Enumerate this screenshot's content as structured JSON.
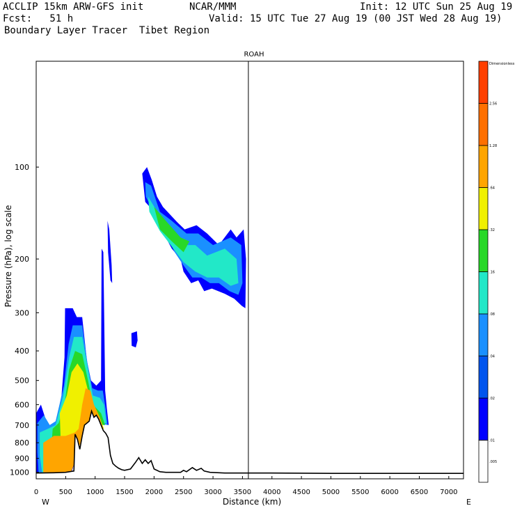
{
  "header": {
    "line1_left": "ACCLIP 15km ARW-GFS init",
    "line1_mid": "NCAR/MMM",
    "line1_right": "Init: 12 UTC Sun 25 Aug 19",
    "line2_left": "Fcst:   51 h",
    "line2_right": "Valid: 15 UTC Tue 27 Aug 19 (00 JST Wed 28 Aug 19)",
    "line3": "Boundary Layer Tracer  Tibet Region"
  },
  "chart_data": {
    "type": "heatmap",
    "title": "ROAH",
    "xlabel": "Distance (km)",
    "ylabel": "Pressure (hPa), log scale",
    "xlim": [
      0,
      7250
    ],
    "ylim_hPa": [
      1050,
      45
    ],
    "x_ticks": [
      0,
      500,
      1000,
      1500,
      2000,
      2500,
      3000,
      3500,
      4000,
      4500,
      5000,
      5500,
      6000,
      6500,
      7000
    ],
    "x_tick_labels": [
      "0",
      "500",
      "1000",
      "1500",
      "2000",
      "2500",
      "3000",
      "3500",
      "4000",
      "4500",
      "5000",
      "5500",
      "6000",
      "6500",
      "7000"
    ],
    "y_ticks": [
      100,
      200,
      300,
      400,
      500,
      600,
      700,
      800,
      900,
      1000
    ],
    "y_tick_labels": [
      "100",
      "200",
      "300",
      "400",
      "500",
      "600",
      "700",
      "800",
      "900",
      "1000"
    ],
    "x_end_left": "W",
    "x_end_right": "E",
    "vertical_marker_km": 3600,
    "colorbar": {
      "levels": [
        ".005",
        ".01",
        ".02",
        ".04",
        ".08",
        ".16",
        ".32",
        ".64",
        "1.28",
        "2.56",
        "Dimensionless"
      ],
      "colors": [
        "#ffffff",
        "#0000ff",
        "#0055ee",
        "#1a90ff",
        "#22e8c8",
        "#28d828",
        "#f0f000",
        "#ffa500",
        "#ff7000",
        "#ff4000"
      ]
    },
    "terrain": [
      [
        0,
        1005
      ],
      [
        300,
        1003
      ],
      [
        500,
        1000
      ],
      [
        640,
        990
      ],
      [
        660,
        750
      ],
      [
        700,
        780
      ],
      [
        740,
        840
      ],
      [
        780,
        760
      ],
      [
        820,
        700
      ],
      [
        860,
        690
      ],
      [
        900,
        680
      ],
      [
        940,
        630
      ],
      [
        980,
        660
      ],
      [
        1020,
        650
      ],
      [
        1060,
        670
      ],
      [
        1100,
        700
      ],
      [
        1140,
        730
      ],
      [
        1180,
        745
      ],
      [
        1220,
        770
      ],
      [
        1260,
        880
      ],
      [
        1300,
        935
      ],
      [
        1350,
        955
      ],
      [
        1400,
        970
      ],
      [
        1450,
        980
      ],
      [
        1500,
        985
      ],
      [
        1600,
        975
      ],
      [
        1680,
        930
      ],
      [
        1740,
        895
      ],
      [
        1800,
        935
      ],
      [
        1850,
        910
      ],
      [
        1900,
        935
      ],
      [
        1950,
        915
      ],
      [
        2000,
        975
      ],
      [
        2100,
        995
      ],
      [
        2200,
        1000
      ],
      [
        2450,
        1000
      ],
      [
        2500,
        985
      ],
      [
        2550,
        995
      ],
      [
        2650,
        965
      ],
      [
        2720,
        985
      ],
      [
        2800,
        970
      ],
      [
        2850,
        990
      ],
      [
        2950,
        1000
      ],
      [
        3200,
        1005
      ],
      [
        4000,
        1005
      ],
      [
        5000,
        1008
      ],
      [
        7250,
        1008
      ]
    ],
    "tracer_regions": [
      {
        "level": 1,
        "points": [
          [
            0,
            640
          ],
          [
            80,
            600
          ],
          [
            150,
            660
          ],
          [
            230,
            720
          ],
          [
            330,
            700
          ],
          [
            430,
            560
          ],
          [
            480,
            420
          ],
          [
            490,
            290
          ],
          [
            620,
            290
          ],
          [
            690,
            310
          ],
          [
            780,
            310
          ],
          [
            860,
            430
          ],
          [
            930,
            500
          ],
          [
            1020,
            520
          ],
          [
            1100,
            500
          ],
          [
            1110,
            185
          ],
          [
            1140,
            190
          ],
          [
            1170,
            540
          ],
          [
            1200,
            620
          ],
          [
            1230,
            700
          ],
          [
            900,
            680
          ],
          [
            700,
            790
          ],
          [
            660,
            920
          ],
          [
            600,
            1000
          ],
          [
            300,
            1000
          ],
          [
            0,
            1000
          ]
        ]
      },
      {
        "level": 1,
        "points": [
          [
            1210,
            150
          ],
          [
            1240,
            160
          ],
          [
            1280,
            210
          ],
          [
            1290,
            240
          ],
          [
            1260,
            235
          ],
          [
            1220,
            190
          ]
        ]
      },
      {
        "level": 1,
        "points": [
          [
            1615,
            350
          ],
          [
            1710,
            345
          ],
          [
            1720,
            370
          ],
          [
            1690,
            390
          ],
          [
            1620,
            385
          ]
        ]
      },
      {
        "level": 1,
        "points": [
          [
            1800,
            105
          ],
          [
            1880,
            100
          ],
          [
            1960,
            110
          ],
          [
            2050,
            125
          ],
          [
            2150,
            135
          ],
          [
            2300,
            145
          ],
          [
            2400,
            152
          ],
          [
            2520,
            160
          ],
          [
            2720,
            155
          ],
          [
            2900,
            165
          ],
          [
            3100,
            180
          ],
          [
            3300,
            160
          ],
          [
            3400,
            170
          ],
          [
            3520,
            160
          ],
          [
            3560,
            200
          ],
          [
            3550,
            290
          ],
          [
            3490,
            285
          ],
          [
            3360,
            270
          ],
          [
            3200,
            260
          ],
          [
            2980,
            250
          ],
          [
            2850,
            255
          ],
          [
            2750,
            235
          ],
          [
            2630,
            240
          ],
          [
            2500,
            220
          ],
          [
            2450,
            200
          ],
          [
            2300,
            185
          ],
          [
            2200,
            170
          ],
          [
            2000,
            140
          ],
          [
            1850,
            130
          ]
        ]
      },
      {
        "level": 3,
        "points": [
          [
            20,
            690
          ],
          [
            130,
            650
          ],
          [
            230,
            700
          ],
          [
            330,
            680
          ],
          [
            470,
            520
          ],
          [
            550,
            380
          ],
          [
            620,
            330
          ],
          [
            780,
            330
          ],
          [
            870,
            440
          ],
          [
            950,
            530
          ],
          [
            1050,
            540
          ],
          [
            1130,
            540
          ],
          [
            1180,
            620
          ],
          [
            1210,
            700
          ],
          [
            900,
            680
          ],
          [
            700,
            800
          ],
          [
            640,
            930
          ],
          [
            560,
            1000
          ],
          [
            40,
            1000
          ],
          [
            20,
            860
          ]
        ]
      },
      {
        "level": 3,
        "points": [
          [
            1850,
            112
          ],
          [
            1950,
            115
          ],
          [
            2100,
            140
          ],
          [
            2300,
            150
          ],
          [
            2550,
            165
          ],
          [
            2750,
            165
          ],
          [
            3000,
            180
          ],
          [
            3300,
            170
          ],
          [
            3480,
            180
          ],
          [
            3500,
            240
          ],
          [
            3430,
            262
          ],
          [
            3280,
            255
          ],
          [
            3100,
            240
          ],
          [
            2950,
            240
          ],
          [
            2800,
            230
          ],
          [
            2650,
            230
          ],
          [
            2500,
            210
          ],
          [
            2350,
            190
          ],
          [
            2200,
            165
          ],
          [
            1950,
            135
          ],
          [
            1860,
            125
          ]
        ]
      },
      {
        "level": 4,
        "points": [
          [
            60,
            740
          ],
          [
            200,
            720
          ],
          [
            330,
            700
          ],
          [
            460,
            560
          ],
          [
            560,
            420
          ],
          [
            640,
            360
          ],
          [
            780,
            360
          ],
          [
            880,
            460
          ],
          [
            960,
            560
          ],
          [
            1080,
            570
          ],
          [
            1150,
            600
          ],
          [
            1190,
            690
          ],
          [
            880,
            690
          ],
          [
            700,
            820
          ],
          [
            620,
            940
          ],
          [
            520,
            1000
          ],
          [
            100,
            1000
          ],
          [
            60,
            880
          ]
        ]
      },
      {
        "level": 4,
        "points": [
          [
            1900,
            125
          ],
          [
            2100,
            145
          ],
          [
            2300,
            160
          ],
          [
            2500,
            180
          ],
          [
            2700,
            180
          ],
          [
            2900,
            195
          ],
          [
            3200,
            185
          ],
          [
            3400,
            200
          ],
          [
            3430,
            240
          ],
          [
            3300,
            245
          ],
          [
            3100,
            230
          ],
          [
            2900,
            230
          ],
          [
            2700,
            220
          ],
          [
            2500,
            205
          ],
          [
            2300,
            182
          ],
          [
            2100,
            162
          ],
          [
            1920,
            140
          ]
        ]
      },
      {
        "level": 5,
        "points": [
          [
            280,
            720
          ],
          [
            380,
            690
          ],
          [
            480,
            600
          ],
          [
            560,
            460
          ],
          [
            660,
            400
          ],
          [
            780,
            410
          ],
          [
            880,
            500
          ],
          [
            960,
            600
          ],
          [
            1100,
            640
          ],
          [
            1170,
            700
          ],
          [
            880,
            700
          ],
          [
            700,
            830
          ],
          [
            620,
            930
          ],
          [
            300,
            960
          ],
          [
            260,
            820
          ]
        ]
      },
      {
        "level": 5,
        "points": [
          [
            2000,
            135
          ],
          [
            2200,
            150
          ],
          [
            2450,
            170
          ],
          [
            2600,
            175
          ],
          [
            2500,
            190
          ],
          [
            2300,
            175
          ],
          [
            2100,
            160
          ]
        ]
      },
      {
        "level": 6,
        "points": [
          [
            400,
            640
          ],
          [
            520,
            560
          ],
          [
            600,
            470
          ],
          [
            700,
            440
          ],
          [
            800,
            470
          ],
          [
            880,
            540
          ],
          [
            950,
            640
          ],
          [
            1100,
            680
          ],
          [
            1150,
            720
          ],
          [
            880,
            700
          ],
          [
            700,
            830
          ],
          [
            600,
            900
          ],
          [
            420,
            850
          ]
        ]
      },
      {
        "level": 7,
        "points": [
          [
            720,
            720
          ],
          [
            780,
            600
          ],
          [
            840,
            530
          ],
          [
            920,
            540
          ],
          [
            980,
            600
          ],
          [
            1080,
            660
          ],
          [
            1140,
            720
          ],
          [
            900,
            700
          ],
          [
            800,
            760
          ],
          [
            720,
            830
          ],
          [
            660,
            920
          ],
          [
            600,
            990
          ],
          [
            500,
            1000
          ],
          [
            120,
            1000
          ],
          [
            120,
            800
          ],
          [
            300,
            760
          ],
          [
            500,
            760
          ],
          [
            660,
            740
          ]
        ]
      }
    ]
  }
}
